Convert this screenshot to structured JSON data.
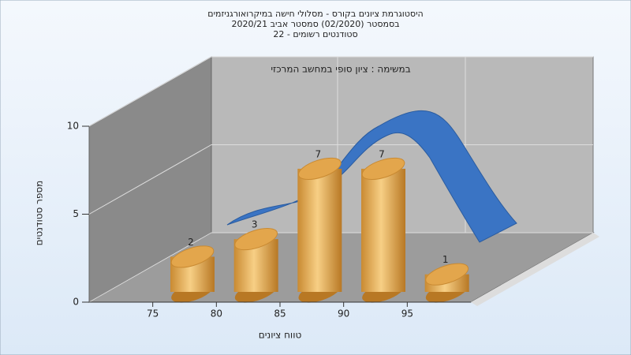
{
  "chart_data": {
    "type": "histogram",
    "title": [
      "היסטוגרמת ציונים בקורס - מסלולי חישה במיקרואורגניזמים",
      "בסמסטר  (02/2020)  סמסטר אביב 2020/21",
      "סטודנטים רשומים - 22"
    ],
    "annotation": "במשימה : ציון סופי במחשב המרכזי",
    "x_label": "טווח ציונים",
    "y_label": "מספר סטודנטים",
    "bins": [
      75,
      80,
      85,
      90,
      95,
      100
    ],
    "values": [
      2,
      3,
      7,
      7,
      1
    ],
    "color": "#e3a64c",
    "xlim": [
      70,
      100
    ],
    "xticks": [
      75,
      80,
      85,
      90,
      95
    ],
    "ylim": [
      0,
      10
    ],
    "yticks": [
      0,
      5,
      10
    ],
    "grid": true
  }
}
